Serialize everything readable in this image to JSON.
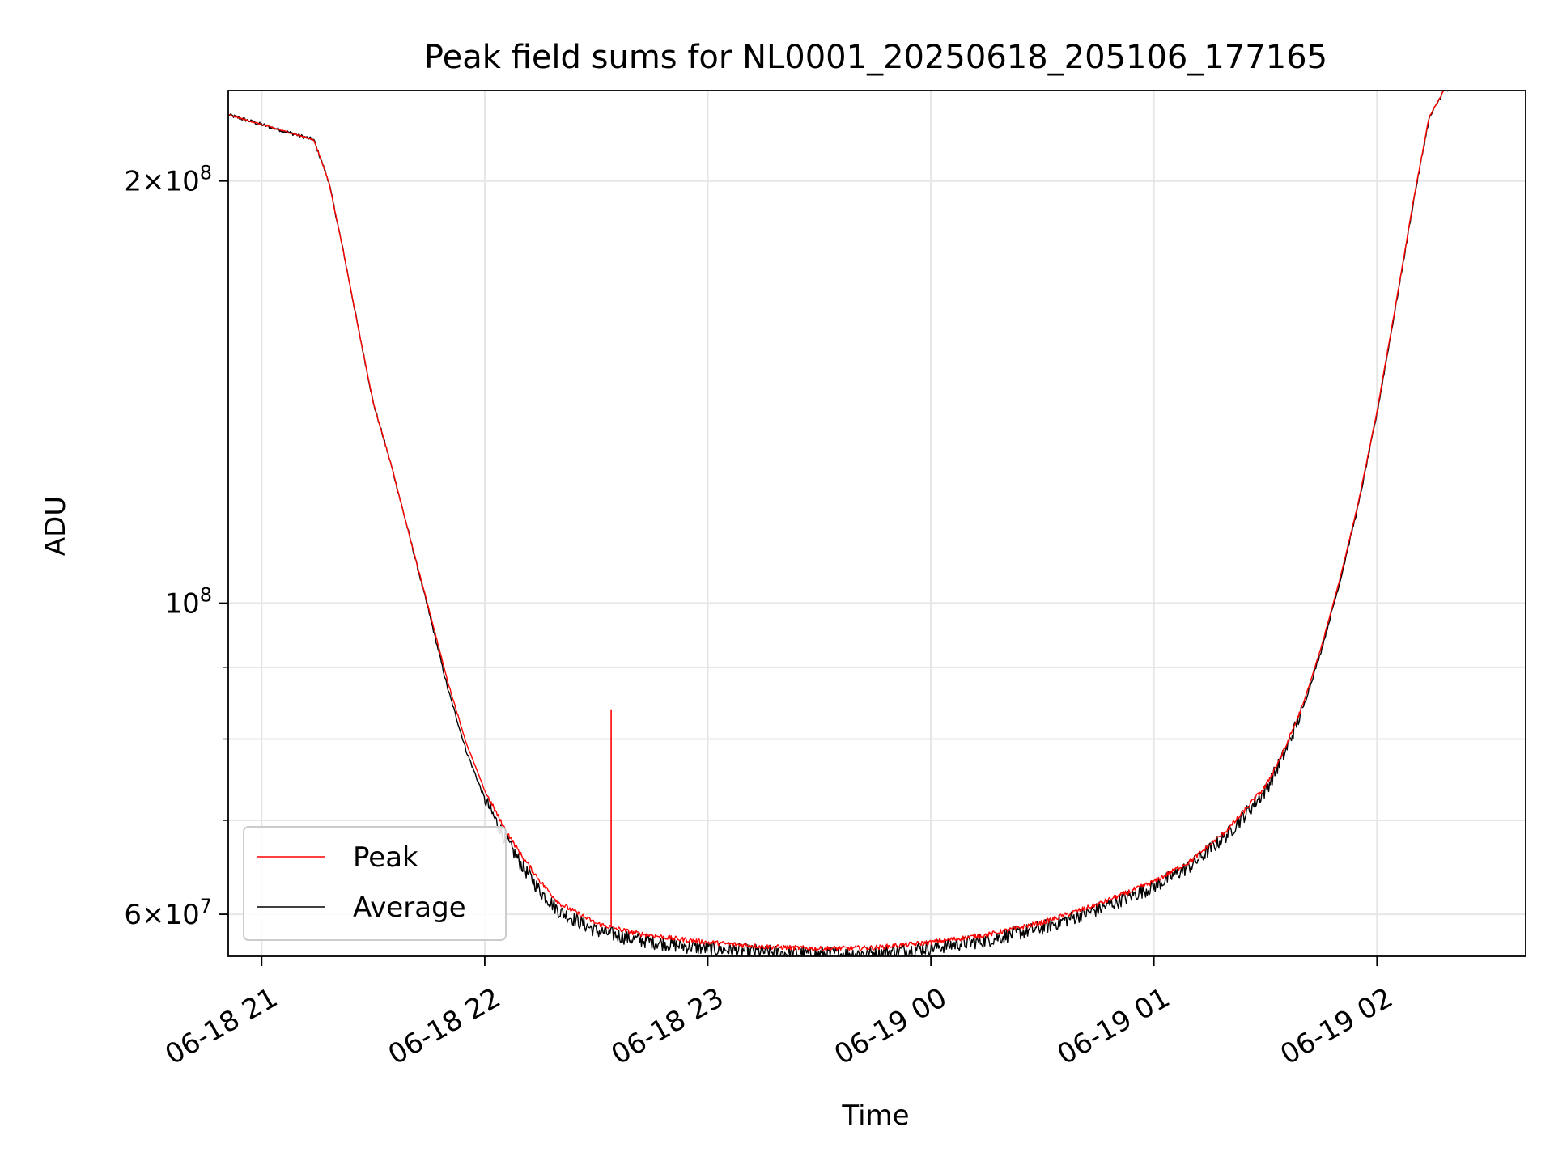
{
  "chart_data": {
    "type": "line",
    "title": "Peak field sums for NL0001_20250618_205106_177165",
    "xlabel": "Time",
    "ylabel": "ADU",
    "y_scale": "log",
    "grid": true,
    "legend_position": "lower-left",
    "xlim": [
      "2025-06-18 20:51",
      "2025-06-19 02:40"
    ],
    "ylim": [
      56000000,
      232000000
    ],
    "x_ticks": [
      "2025-06-18 21:00",
      "2025-06-18 22:00",
      "2025-06-18 23:00",
      "2025-06-19 00:00",
      "2025-06-19 01:00",
      "2025-06-19 02:00"
    ],
    "x_tick_labels": [
      "06-18 21",
      "06-18 22",
      "06-18 23",
      "06-19 00",
      "06-19 01",
      "06-19 02"
    ],
    "y_ticks": [
      {
        "value": 200000000,
        "mantissa": "2",
        "exponent": "8"
      },
      {
        "value": 100000000,
        "mantissa": "",
        "exponent": "8"
      },
      {
        "value": 60000000,
        "mantissa": "6",
        "exponent": "7"
      }
    ],
    "y_minor_ticks": [
      70000000,
      80000000,
      90000000
    ],
    "x": [
      "2025-06-18 20:51",
      "2025-06-18 21:14",
      "2025-06-18 21:18",
      "2025-06-18 21:22",
      "2025-06-18 21:26",
      "2025-06-18 21:30",
      "2025-06-18 21:35",
      "2025-06-18 21:40",
      "2025-06-18 21:45",
      "2025-06-18 21:50",
      "2025-06-18 21:55",
      "2025-06-18 22:00",
      "2025-06-18 22:05",
      "2025-06-18 22:10",
      "2025-06-18 22:15",
      "2025-06-18 22:20",
      "2025-06-18 22:30",
      "2025-06-18 22:40",
      "2025-06-18 22:50",
      "2025-06-18 23:00",
      "2025-06-18 23:15",
      "2025-06-18 23:30",
      "2025-06-18 23:45",
      "2025-06-19 00:00",
      "2025-06-19 00:15",
      "2025-06-19 00:30",
      "2025-06-19 00:45",
      "2025-06-19 01:00",
      "2025-06-19 01:10",
      "2025-06-19 01:20",
      "2025-06-19 01:30",
      "2025-06-19 01:35",
      "2025-06-19 01:40",
      "2025-06-19 01:45",
      "2025-06-19 01:50",
      "2025-06-19 01:55",
      "2025-06-19 02:00",
      "2025-06-19 02:05",
      "2025-06-19 02:10",
      "2025-06-19 02:14",
      "2025-06-19 02:18",
      "2025-06-19 02:20"
    ],
    "series": [
      {
        "name": "Peak",
        "color": "#ff0000",
        "values": [
          223000000,
          214000000,
          200000000,
          178000000,
          157000000,
          139000000,
          125000000,
          111000000,
          99000000,
          88000000,
          79500000,
          73500000,
          69300000,
          66000000,
          63300000,
          61100000,
          59100000,
          58200000,
          57700000,
          57300000,
          56900000,
          56700000,
          56800000,
          57300000,
          58000000,
          59200000,
          61000000,
          63300000,
          65500000,
          69000000,
          74000000,
          78500000,
          84500000,
          93000000,
          104000000,
          118000000,
          137000000,
          163000000,
          195000000,
          222000000,
          232000000,
          232000000
        ],
        "spike": {
          "x": "2025-06-18 22:34",
          "value": 84000000
        }
      },
      {
        "name": "Average",
        "color": "#000000",
        "values": [
          223000000,
          214000000,
          200000000,
          178000000,
          157000000,
          139000000,
          125000000,
          111000000,
          98500000,
          87000000,
          78500000,
          72500000,
          68300000,
          65000000,
          62300000,
          60300000,
          58400000,
          57600000,
          57100000,
          56700000,
          56400000,
          56200000,
          56300000,
          56800000,
          57500000,
          58700000,
          60500000,
          62800000,
          65000000,
          68500000,
          73500000,
          78000000,
          84000000,
          92500000,
          103500000,
          117500000,
          136500000,
          162500000,
          194500000,
          221500000,
          232000000,
          232000000
        ]
      }
    ]
  }
}
